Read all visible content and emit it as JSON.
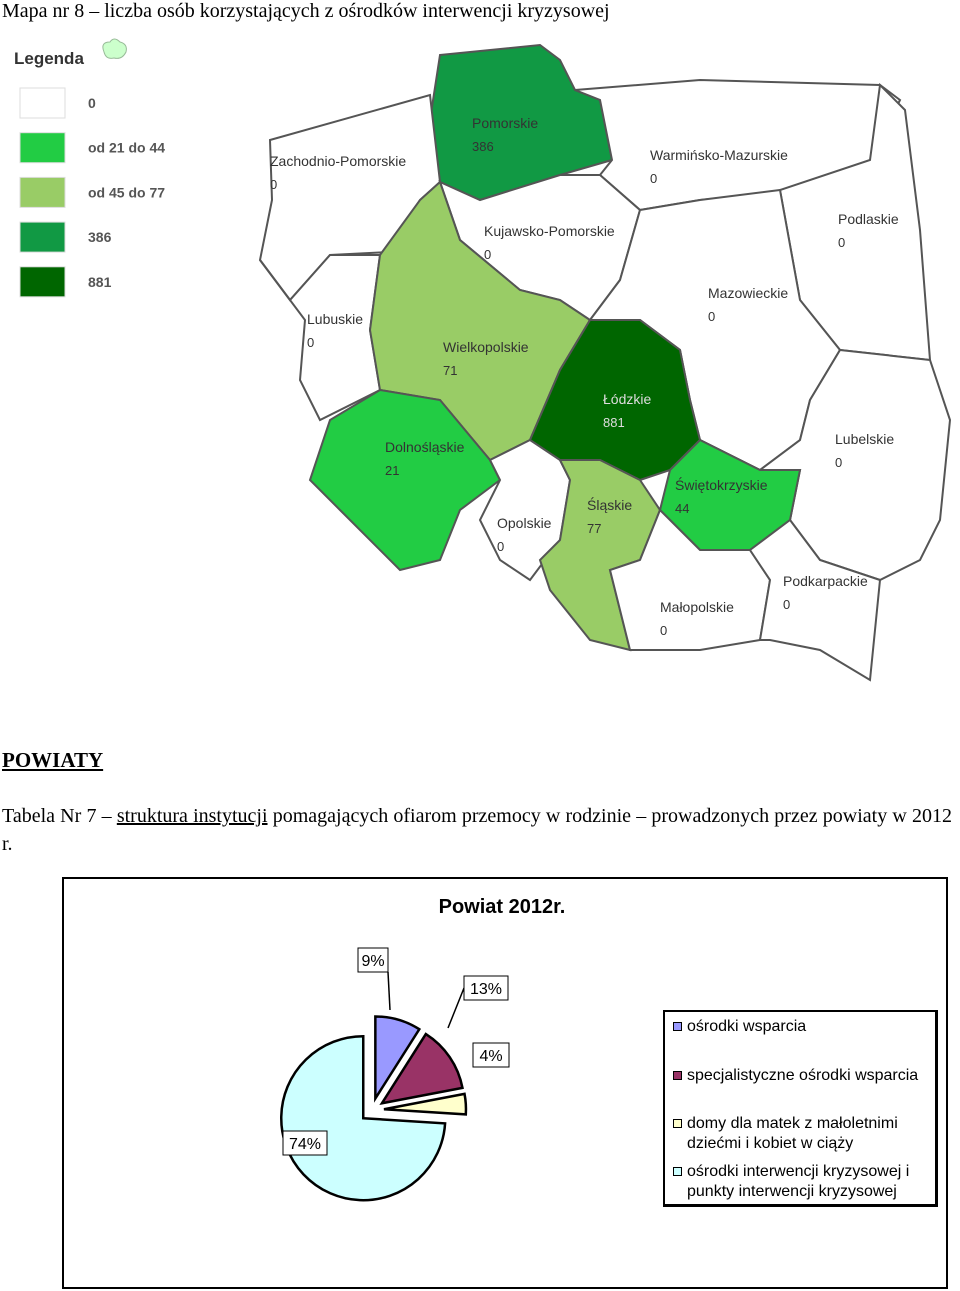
{
  "map": {
    "title": "Mapa nr 8 – liczba osób korzystających z ośrodków interwencji kryzysowej",
    "legend_title": "Legenda",
    "legend": [
      {
        "label": "0",
        "color": "#ffffff"
      },
      {
        "label": "od 21 do 44",
        "color": "#22cc44"
      },
      {
        "label": "od 45 do 77",
        "color": "#99cc66"
      },
      {
        "label": "386",
        "color": "#119944"
      },
      {
        "label": "881",
        "color": "#006600"
      }
    ],
    "regions": [
      {
        "name": "Pomorskie",
        "value": "386",
        "color": "#119944"
      },
      {
        "name": "Zachodnio-Pomorskie",
        "value": "0",
        "color": "#ffffff"
      },
      {
        "name": "Warmińsko-Mazurskie",
        "value": "0",
        "color": "#ffffff"
      },
      {
        "name": "Podlaskie",
        "value": "0",
        "color": "#ffffff"
      },
      {
        "name": "Kujawsko-Pomorskie",
        "value": "0",
        "color": "#ffffff"
      },
      {
        "name": "Lubuskie",
        "value": "0",
        "color": "#ffffff"
      },
      {
        "name": "Wielkopolskie",
        "value": "71",
        "color": "#99cc66"
      },
      {
        "name": "Mazowieckie",
        "value": "0",
        "color": "#ffffff"
      },
      {
        "name": "Łódzkie",
        "value": "881",
        "color": "#006600"
      },
      {
        "name": "Lubelskie",
        "value": "0",
        "color": "#ffffff"
      },
      {
        "name": "Świętokrzyskie",
        "value": "44",
        "color": "#22cc44"
      },
      {
        "name": "Dolnośląskie",
        "value": "21",
        "color": "#22cc44"
      },
      {
        "name": "Opolskie",
        "value": "0",
        "color": "#ffffff"
      },
      {
        "name": "Śląskie",
        "value": "77",
        "color": "#99cc66"
      },
      {
        "name": "Małopolskie",
        "value": "0",
        "color": "#ffffff"
      },
      {
        "name": "Podkarpackie",
        "value": "0",
        "color": "#ffffff"
      }
    ]
  },
  "section": "POWIATY",
  "caption": [
    "Tabela Nr 7 – ",
    "struktura instytucji",
    " pomagających ofiarom przemocy w rodzinie – prowadzonych przez powiaty w 2012 r."
  ],
  "chart_data": {
    "type": "pie",
    "title": "Powiat 2012r.",
    "categories": [
      "ośrodki wsparcia",
      "specjalistyczne ośrodki wsparcia",
      "domy dla matek z małoletnimi dziećmi i kobiet w ciąży",
      "ośrodki interwencji kryzysowej i punkty interwencji kryzysowej"
    ],
    "values": [
      9,
      13,
      4,
      74
    ],
    "value_labels": [
      "9%",
      "13%",
      "4%",
      "74%"
    ],
    "colors": [
      "#9999ff",
      "#993366",
      "#ffffcc",
      "#ccffff"
    ]
  }
}
